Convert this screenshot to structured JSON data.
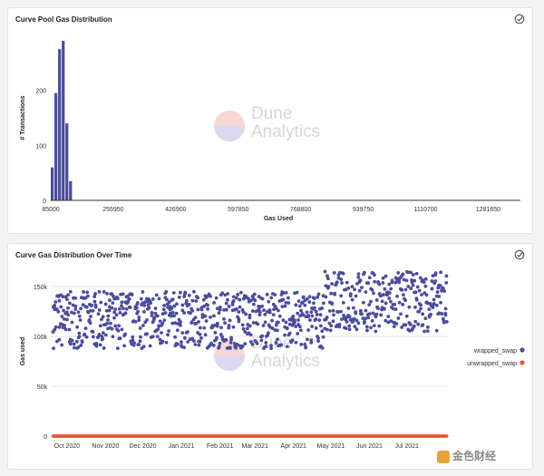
{
  "charts": [
    {
      "title": "Curve Pool Gas Distribution",
      "xlabel": "Gas Used",
      "ylabel": "# Transactions",
      "bar_color": "#4a4c9c",
      "axis_color": "#333333"
    },
    {
      "title": "Curve Gas Distribution Over Time",
      "xlabel": "",
      "ylabel": "Gas used",
      "legend_items": [
        "wrapped_swap",
        "unwrapped_swap"
      ],
      "colors": {
        "wrapped_swap": "#4a4c9c",
        "unwrapped_swap": "#e3582b"
      }
    }
  ],
  "watermark": {
    "line1": "Dune",
    "line2": "Analytics"
  },
  "footer": {
    "logo_text": "金色财经"
  },
  "chart_data": [
    {
      "type": "bar",
      "title": "Curve Pool Gas Distribution",
      "xlabel": "Gas Used",
      "ylabel": "# Transactions",
      "xlim": [
        85000,
        1370000
      ],
      "ylim": [
        0,
        300
      ],
      "x_tick_values": [
        85000,
        255950,
        426900,
        597850,
        768800,
        939750,
        1110700,
        1281650
      ],
      "x_tick_labels": [
        "85000",
        "255950",
        "426900",
        "597850",
        "768800",
        "939750",
        "1110700",
        "1281650"
      ],
      "y_ticks": [
        0,
        100,
        200
      ],
      "bin_width": 10000,
      "bins": [
        {
          "x0": 85000,
          "value": 60
        },
        {
          "x0": 95000,
          "value": 195
        },
        {
          "x0": 105000,
          "value": 275
        },
        {
          "x0": 115000,
          "value": 290
        },
        {
          "x0": 125000,
          "value": 140
        },
        {
          "x0": 135000,
          "value": 35
        }
      ]
    },
    {
      "type": "scatter",
      "title": "Curve Gas Distribution Over Time",
      "xlabel": "",
      "ylabel": "Gas used",
      "x_axis": "date",
      "xlim": [
        "2020-09-18",
        "2021-08-03"
      ],
      "ylim": [
        0,
        170000
      ],
      "y_ticks": [
        0,
        50000,
        100000,
        150000
      ],
      "y_tick_labels": [
        "0",
        "50k",
        "100k",
        "150k"
      ],
      "x_tick_dates": [
        "2020-10-01",
        "2020-11-01",
        "2020-12-01",
        "2021-01-01",
        "2021-02-01",
        "2021-03-01",
        "2021-04-01",
        "2021-05-01",
        "2021-06-01",
        "2021-07-01"
      ],
      "x_tick_labels": [
        "Oct 2020",
        "Nov 2020",
        "Dec 2020",
        "Jan 2021",
        "Feb 2021",
        "Mar 2021",
        "Apr 2021",
        "May 2021",
        "Jun 2021",
        "Jul 2021"
      ],
      "legend": "right",
      "series": [
        {
          "name": "wrapped_swap",
          "pattern": "daily_scatter",
          "periods": [
            {
              "from": "2020-09-20",
              "to": "2021-04-25",
              "range": [
                88000,
                145000
              ]
            },
            {
              "from": "2021-04-26",
              "to": "2021-08-02",
              "range": [
                105000,
                165000
              ]
            }
          ]
        },
        {
          "name": "unwrapped_swap",
          "pattern": "flat",
          "from": "2020-09-20",
          "to": "2021-08-02",
          "value": 0
        }
      ]
    }
  ]
}
